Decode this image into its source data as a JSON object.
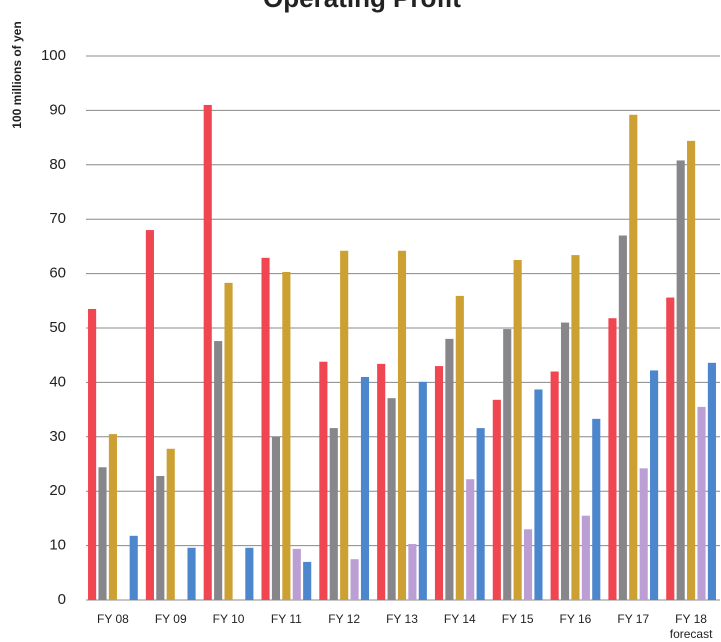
{
  "chart_data": {
    "type": "bar",
    "title": "Operating Profit",
    "y_label": "100 millions of yen",
    "categories": [
      "FY 08",
      "FY 09",
      "FY 10",
      "FY 11",
      "FY 12",
      "FY 13",
      "FY 14",
      "FY 15",
      "FY 16",
      "FY 17",
      [
        "FY 18",
        "forecast"
      ]
    ],
    "series": [
      {
        "color": "#ef4652",
        "values": [
          53.5,
          68,
          91,
          62.9,
          43.8,
          43.4,
          43,
          36.8,
          42,
          51.8,
          55.6
        ]
      },
      {
        "color": "#87878b",
        "values": [
          24.4,
          22.8,
          47.6,
          30,
          31.6,
          37.1,
          48,
          49.8,
          51,
          67,
          80.8
        ]
      },
      {
        "color": "#cca033",
        "values": [
          30.5,
          27.8,
          58.3,
          60.3,
          64.2,
          64.2,
          55.9,
          62.5,
          63.4,
          89.2,
          84.4
        ]
      },
      {
        "color": "#bb9ed4",
        "values": [
          null,
          null,
          null,
          9.4,
          7.5,
          10.3,
          22.2,
          13,
          15.5,
          24.2,
          35.5
        ]
      },
      {
        "color": "#4c86cc",
        "values": [
          11.8,
          9.6,
          9.6,
          7,
          41,
          40.1,
          31.6,
          38.7,
          33.3,
          42.2,
          43.6
        ]
      }
    ],
    "ylim": [
      0,
      100
    ],
    "yticks": [
      0,
      10,
      20,
      30,
      40,
      50,
      60,
      70,
      80,
      90,
      100
    ],
    "grid": true
  }
}
